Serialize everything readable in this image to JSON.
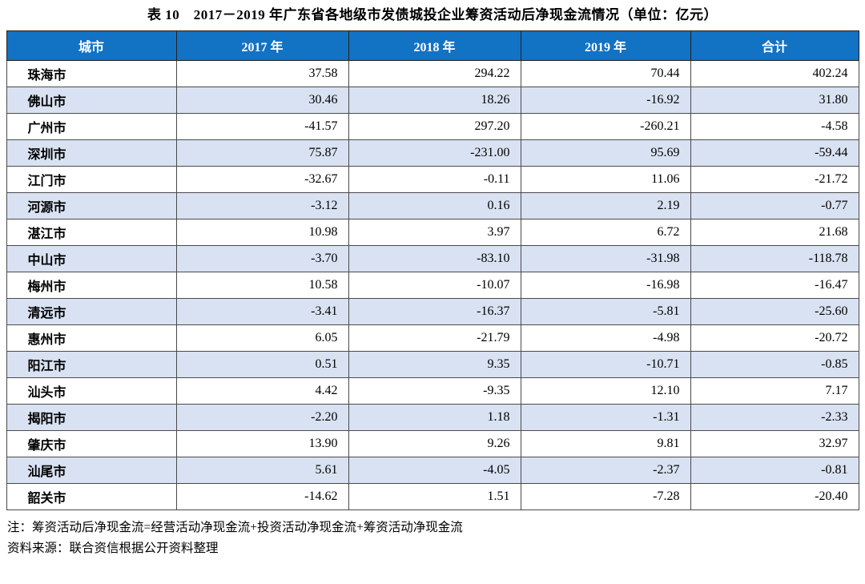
{
  "title": "表 10　2017－2019 年广东省各地级市发债城投企业筹资活动后净现金流情况（单位：亿元）",
  "colors": {
    "header_bg": "#1272C4",
    "header_fg": "#FFFFFF",
    "alt_row_bg": "#D9E2F2",
    "border": "#4a4a4a"
  },
  "table": {
    "headers": [
      "城市",
      "2017 年",
      "2018 年",
      "2019 年",
      "合计"
    ],
    "rows": [
      {
        "city": "珠海市",
        "values": [
          "37.58",
          "294.22",
          "70.44",
          "402.24"
        ]
      },
      {
        "city": "佛山市",
        "values": [
          "30.46",
          "18.26",
          "-16.92",
          "31.80"
        ]
      },
      {
        "city": "广州市",
        "values": [
          "-41.57",
          "297.20",
          "-260.21",
          "-4.58"
        ]
      },
      {
        "city": "深圳市",
        "values": [
          "75.87",
          "-231.00",
          "95.69",
          "-59.44"
        ]
      },
      {
        "city": "江门市",
        "values": [
          "-32.67",
          "-0.11",
          "11.06",
          "-21.72"
        ]
      },
      {
        "city": "河源市",
        "values": [
          "-3.12",
          "0.16",
          "2.19",
          "-0.77"
        ]
      },
      {
        "city": "湛江市",
        "values": [
          "10.98",
          "3.97",
          "6.72",
          "21.68"
        ]
      },
      {
        "city": "中山市",
        "values": [
          "-3.70",
          "-83.10",
          "-31.98",
          "-118.78"
        ]
      },
      {
        "city": "梅州市",
        "values": [
          "10.58",
          "-10.07",
          "-16.98",
          "-16.47"
        ]
      },
      {
        "city": "清远市",
        "values": [
          "-3.41",
          "-16.37",
          "-5.81",
          "-25.60"
        ]
      },
      {
        "city": "惠州市",
        "values": [
          "6.05",
          "-21.79",
          "-4.98",
          "-20.72"
        ]
      },
      {
        "city": "阳江市",
        "values": [
          "0.51",
          "9.35",
          "-10.71",
          "-0.85"
        ]
      },
      {
        "city": "汕头市",
        "values": [
          "4.42",
          "-9.35",
          "12.10",
          "7.17"
        ]
      },
      {
        "city": "揭阳市",
        "values": [
          "-2.20",
          "1.18",
          "-1.31",
          "-2.33"
        ]
      },
      {
        "city": "肇庆市",
        "values": [
          "13.90",
          "9.26",
          "9.81",
          "32.97"
        ]
      },
      {
        "city": "汕尾市",
        "values": [
          "5.61",
          "-4.05",
          "-2.37",
          "-0.81"
        ]
      },
      {
        "city": "韶关市",
        "values": [
          "-14.62",
          "1.51",
          "-7.28",
          "-20.40"
        ]
      }
    ]
  },
  "notes": {
    "note": "注：筹资活动后净现金流=经营活动净现金流+投资活动净现金流+筹资活动净现金流",
    "source": "资料来源：联合资信根据公开资料整理"
  }
}
